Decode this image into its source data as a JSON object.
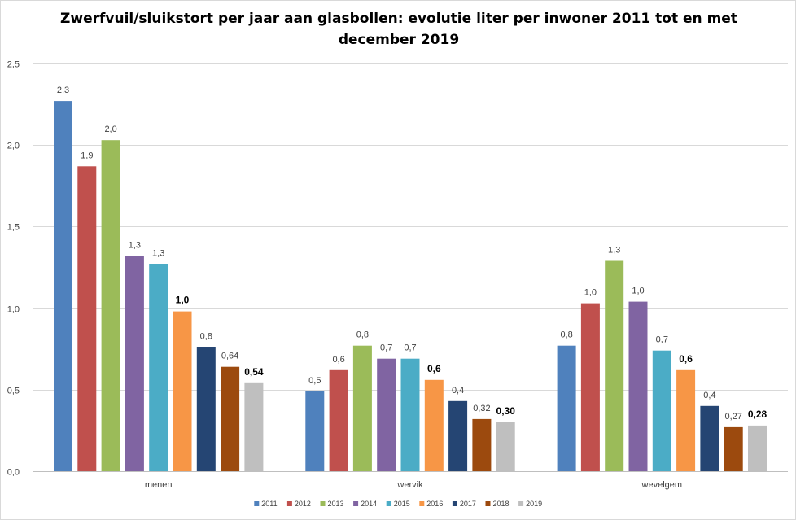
{
  "chart_data": {
    "type": "bar",
    "title_lines": [
      "Zwerfvuil/sluikstort  per jaar aan glasbollen:  evolutie liter per inwoner 2011 tot en met",
      "december 2019"
    ],
    "categories": [
      "menen",
      "wervik",
      "wevelgem"
    ],
    "ylim": [
      0,
      2.5
    ],
    "yticks": [
      "0,0",
      "0,5",
      "1,0",
      "1,5",
      "2,0",
      "2,5"
    ],
    "ytick_values": [
      0,
      0.5,
      1.0,
      1.5,
      2.0,
      2.5
    ],
    "grid": true,
    "legend_position": "bottom",
    "series": [
      {
        "name": "2011",
        "color": "#4F81BD",
        "values": [
          2.27,
          0.49,
          0.77
        ],
        "labels": [
          "2,3",
          "0,5",
          "0,8"
        ],
        "bold": false
      },
      {
        "name": "2012",
        "color": "#C0504D",
        "values": [
          1.87,
          0.62,
          1.03
        ],
        "labels": [
          "1,9",
          "0,6",
          "1,0"
        ],
        "bold": false
      },
      {
        "name": "2013",
        "color": "#9BBB59",
        "values": [
          2.03,
          0.77,
          1.29
        ],
        "labels": [
          "2,0",
          "0,8",
          "1,3"
        ],
        "bold": false
      },
      {
        "name": "2014",
        "color": "#8064A2",
        "values": [
          1.32,
          0.69,
          1.04
        ],
        "labels": [
          "1,3",
          "0,7",
          "1,0"
        ],
        "bold": false
      },
      {
        "name": "2015",
        "color": "#4BACC6",
        "values": [
          1.27,
          0.69,
          0.74
        ],
        "labels": [
          "1,3",
          "0,7",
          "0,7"
        ],
        "bold": false
      },
      {
        "name": "2016",
        "color": "#F79646",
        "values": [
          0.98,
          0.56,
          0.62
        ],
        "labels": [
          "1,0",
          "0,6",
          "0,6"
        ],
        "bold": true
      },
      {
        "name": "2017",
        "color": "#254573",
        "values": [
          0.76,
          0.43,
          0.4
        ],
        "labels": [
          "0,8",
          "0,4",
          "0,4"
        ],
        "bold": false
      },
      {
        "name": "2018",
        "color": "#9C4A0E",
        "values": [
          0.64,
          0.32,
          0.27
        ],
        "labels": [
          "0,64",
          "0,32",
          "0,27"
        ],
        "bold": false
      },
      {
        "name": "2019",
        "color": "#BFBFBF",
        "values": [
          0.54,
          0.3,
          0.28
        ],
        "labels": [
          "0,54",
          "0,30",
          "0,28"
        ],
        "bold": true
      }
    ]
  }
}
